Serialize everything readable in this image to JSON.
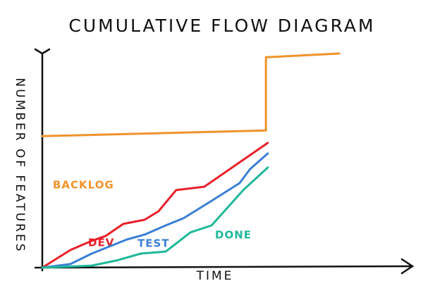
{
  "chart_data": {
    "type": "line",
    "title": "CUMULATIVE FLOW DIAGRAM",
    "x_label": "TIME",
    "y_label": "NUMBER OF FEATURES",
    "xlim": [
      0,
      100
    ],
    "ylim": [
      0,
      120
    ],
    "series": [
      {
        "name": "BACKLOG",
        "color": "#f0932a",
        "x": [
          0,
          61,
          61,
          81
        ],
        "values": [
          70,
          73,
          112,
          114
        ]
      },
      {
        "name": "DEV",
        "color": "#e8202a",
        "x": [
          0,
          7.7,
          13.5,
          17.3,
          22.1,
          27.9,
          31.7,
          36.5,
          44.2,
          61.5
        ],
        "values": [
          0,
          9.4,
          14.3,
          16.9,
          23.3,
          25.5,
          30,
          41.3,
          43.1,
          66.4
        ]
      },
      {
        "name": "TEST",
        "color": "#3a7fd5",
        "x": [
          0,
          7.7,
          13.5,
          23.1,
          27.9,
          33.7,
          38.5,
          46.2,
          53.8,
          56.7,
          61.5
        ],
        "values": [
          0,
          1.9,
          7.5,
          15,
          17.6,
          22.5,
          26.3,
          35.6,
          45,
          52.5,
          60.8
        ]
      },
      {
        "name": "DONE",
        "color": "#1fb89a",
        "x": [
          0,
          13.5,
          20.2,
          26.9,
          33.7,
          40.4,
          46.2,
          54.8,
          61.5
        ],
        "values": [
          0,
          1.1,
          3.8,
          7.5,
          8.6,
          18.8,
          22.5,
          41.3,
          53.3
        ]
      }
    ]
  }
}
